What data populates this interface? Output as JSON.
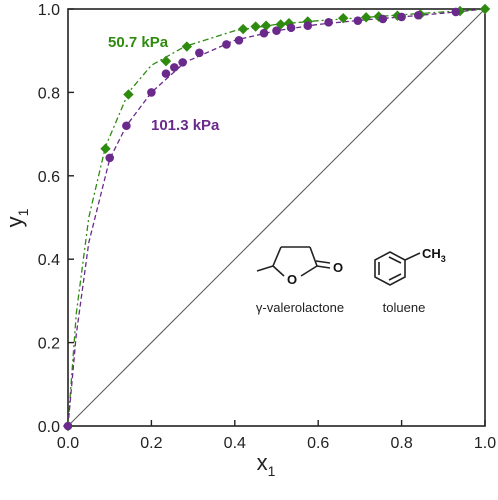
{
  "chart_data": {
    "type": "scatter",
    "xlabel": "x",
    "xlabel_sub": "1",
    "ylabel": "y",
    "ylabel_sub": "1",
    "xlim": [
      0,
      1
    ],
    "ylim": [
      0,
      1
    ],
    "xticks": [
      "0.0",
      "0.2",
      "0.4",
      "0.6",
      "0.8",
      "1.0"
    ],
    "yticks": [
      "0.0",
      "0.2",
      "0.4",
      "0.6",
      "0.8",
      "1.0"
    ],
    "grid": false,
    "diagonal": true,
    "series": [
      {
        "name": "50.7 kPa",
        "color": "#2e8b10",
        "marker": "diamond",
        "line": "dash-dot",
        "points": [
          [
            0.0,
            0.0
          ],
          [
            0.09,
            0.665
          ],
          [
            0.145,
            0.795
          ],
          [
            0.235,
            0.875
          ],
          [
            0.285,
            0.91
          ],
          [
            0.42,
            0.952
          ],
          [
            0.45,
            0.958
          ],
          [
            0.475,
            0.96
          ],
          [
            0.51,
            0.963
          ],
          [
            0.53,
            0.966
          ],
          [
            0.575,
            0.97
          ],
          [
            0.66,
            0.978
          ],
          [
            0.715,
            0.98
          ],
          [
            0.745,
            0.982
          ],
          [
            0.79,
            0.984
          ],
          [
            0.845,
            0.987
          ],
          [
            0.94,
            0.995
          ],
          [
            1.0,
            1.0
          ]
        ]
      },
      {
        "name": "101.3 kPa",
        "color": "#6a2a8c",
        "marker": "circle",
        "line": "dashed",
        "points": [
          [
            0.0,
            0.0
          ],
          [
            0.1,
            0.643
          ],
          [
            0.14,
            0.72
          ],
          [
            0.2,
            0.8
          ],
          [
            0.235,
            0.845
          ],
          [
            0.255,
            0.86
          ],
          [
            0.275,
            0.872
          ],
          [
            0.315,
            0.895
          ],
          [
            0.38,
            0.915
          ],
          [
            0.41,
            0.925
          ],
          [
            0.47,
            0.942
          ],
          [
            0.5,
            0.948
          ],
          [
            0.535,
            0.955
          ],
          [
            0.575,
            0.96
          ],
          [
            0.625,
            0.968
          ],
          [
            0.695,
            0.972
          ],
          [
            0.755,
            0.976
          ],
          [
            0.8,
            0.981
          ],
          [
            0.84,
            0.985
          ],
          [
            0.93,
            0.993
          ]
        ]
      }
    ],
    "fits": [
      {
        "series": "50.7 kPa",
        "color": "#2e8b10",
        "dash": "6,3,2,3",
        "x": [
          0,
          0.02,
          0.05,
          0.09,
          0.145,
          0.2,
          0.28,
          0.4,
          0.5,
          0.6,
          0.7,
          0.8,
          0.9,
          1.0
        ],
        "y": [
          0,
          0.27,
          0.5,
          0.67,
          0.8,
          0.865,
          0.91,
          0.948,
          0.963,
          0.972,
          0.979,
          0.986,
          0.993,
          1.0
        ]
      },
      {
        "series": "101.3 kPa",
        "color": "#6a2a8c",
        "dash": "5,3",
        "x": [
          0,
          0.02,
          0.05,
          0.1,
          0.14,
          0.2,
          0.28,
          0.4,
          0.5,
          0.6,
          0.7,
          0.8,
          0.9,
          1.0
        ],
        "y": [
          0,
          0.22,
          0.44,
          0.64,
          0.72,
          0.8,
          0.872,
          0.925,
          0.948,
          0.963,
          0.973,
          0.981,
          0.99,
          1.0
        ]
      }
    ],
    "annotations": [
      {
        "text": "50.7 kPa",
        "color": "#2e8b10"
      },
      {
        "text": "101.3 kPa",
        "color": "#6a2a8c"
      }
    ],
    "molecules": [
      {
        "name": "γ-valerolactone"
      },
      {
        "name": "toluene",
        "group": "CH",
        "group_sub": "3"
      }
    ],
    "atoms": {
      "oxygen_ring": "O",
      "oxygen_carbonyl": "O"
    }
  }
}
